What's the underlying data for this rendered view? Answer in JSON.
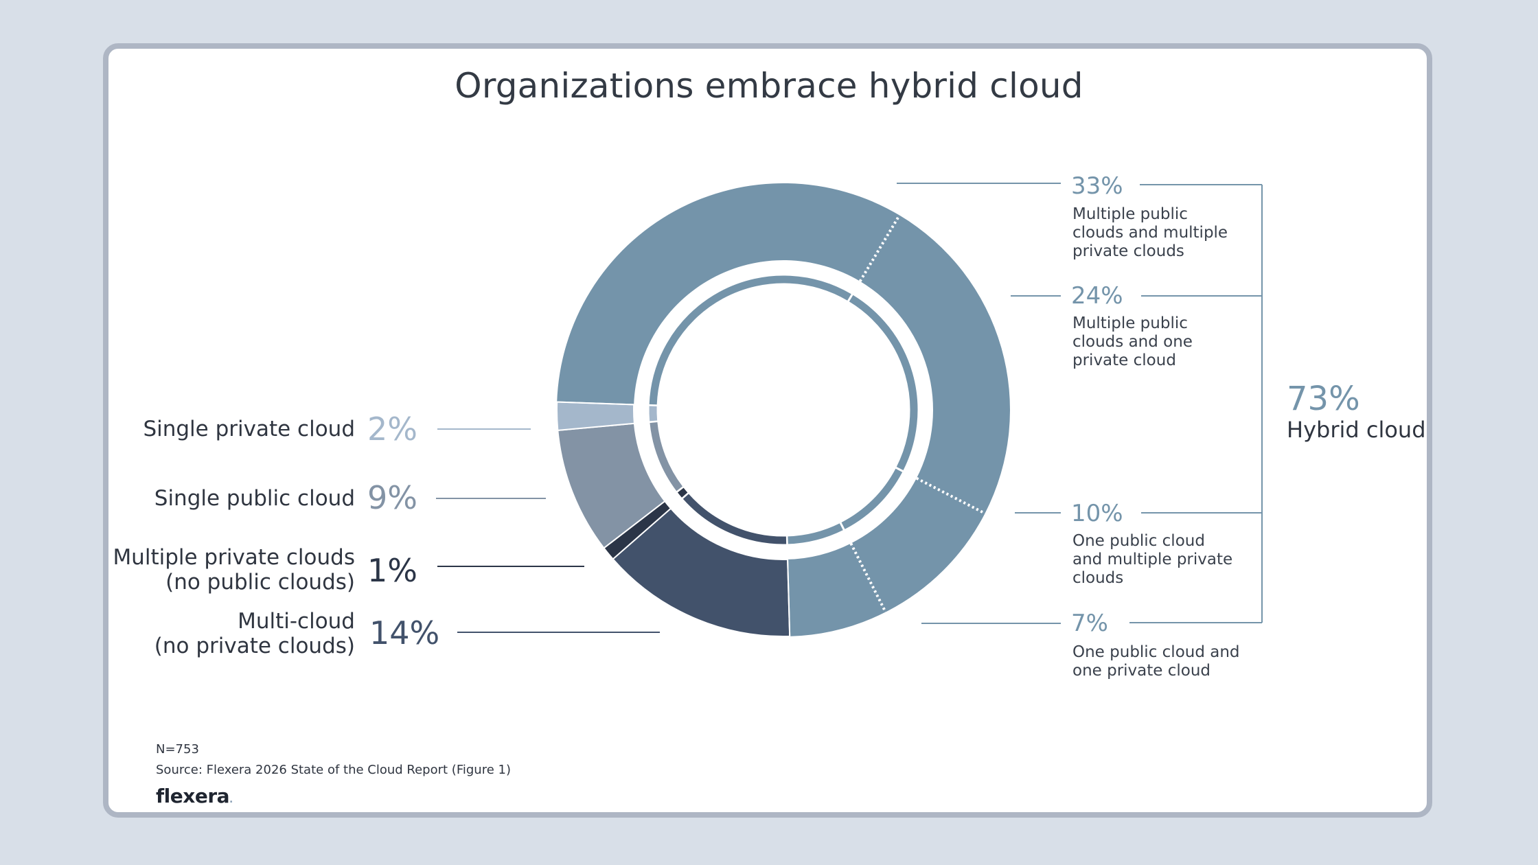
{
  "chart_data": {
    "type": "pie",
    "title": "Organizations embrace hybrid cloud",
    "slices": [
      {
        "label": "Multiple public clouds and multiple private clouds",
        "value": 33,
        "value_label": "33%",
        "color": "#7494aa"
      },
      {
        "label": "Multiple public clouds and one private cloud",
        "value": 24,
        "value_label": "24%",
        "color": "#7494aa"
      },
      {
        "label": "One public cloud and multiple private clouds",
        "value": 10,
        "value_label": "10%",
        "color": "#7494aa"
      },
      {
        "label": "One public cloud and one private cloud",
        "value": 7,
        "value_label": "7%",
        "color": "#7494aa"
      },
      {
        "label": "Multi-cloud (no private clouds)",
        "value": 14,
        "value_label": "14%",
        "color": "#42526b"
      },
      {
        "label": "Multiple private clouds (no public clouds)",
        "value": 1,
        "value_label": "1%",
        "color": "#2b3547"
      },
      {
        "label": "Single public cloud",
        "value": 9,
        "value_label": "9%",
        "color": "#8393a5"
      },
      {
        "label": "Single private cloud",
        "value": 2,
        "value_label": "2%",
        "color": "#a4b7cb"
      }
    ],
    "group": {
      "label": "Hybrid cloud",
      "value_label": "73%"
    }
  },
  "labels": {
    "single_private": "Single private cloud",
    "single_public": "Single public cloud",
    "multi_private_1": "Multiple private clouds",
    "multi_private_2": "(no public clouds)",
    "multi_cloud_1": "Multi-cloud",
    "multi_cloud_2": "(no private clouds)",
    "r33_1": "Multiple public",
    "r33_2": "clouds and multiple",
    "r33_3": "private clouds",
    "r24_1": "Multiple public",
    "r24_2": "clouds and one",
    "r24_3": "private cloud",
    "r10_1": "One public cloud",
    "r10_2": "and multiple private",
    "r10_3": "clouds",
    "r7_1": "One public cloud and",
    "r7_2": "one private cloud"
  },
  "footer": {
    "n": "N=753",
    "source": "Source: Flexera 2026 State of the Cloud Report (Figure 1)",
    "logo": "flexera",
    "logo_dot": "."
  },
  "colors": {
    "hybrid": "#7494aa",
    "multi_cloud": "#42526b",
    "multi_private": "#2b3547",
    "single_public": "#8393a5",
    "single_private": "#a4b7cb",
    "leader": "#7494aa",
    "leader_dark": "#2b3547"
  }
}
